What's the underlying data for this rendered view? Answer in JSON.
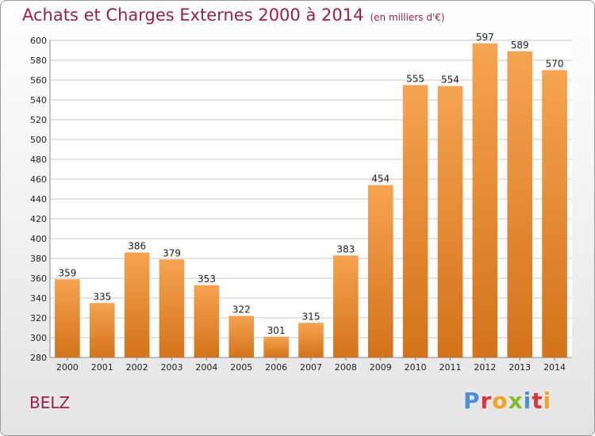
{
  "header": {
    "title": "Achats et Charges Externes 2000 à 2014",
    "subtitle": "(en milliers d'€)"
  },
  "footer": {
    "place": "BELZ",
    "logo_text": "Proxiti",
    "logo_letters": [
      {
        "ch": "P",
        "color": "#4b8fd6"
      },
      {
        "ch": "r",
        "color": "#e2323a"
      },
      {
        "ch": "o",
        "color": "#f3a21e"
      },
      {
        "ch": "x",
        "color": "#7bbd2e"
      },
      {
        "ch": "i",
        "color": "#4b8fd6"
      },
      {
        "ch": "t",
        "color": "#e2323a"
      },
      {
        "ch": "i",
        "color": "#f3a21e"
      }
    ]
  },
  "colors": {
    "bar_top": "#f6a350",
    "bar_bottom": "#d3731a",
    "grid": "#c8c8c8",
    "title": "#9e1f45"
  },
  "chart_data": {
    "type": "bar",
    "title": "Achats et Charges Externes 2000 à 2014",
    "subtitle": "(en milliers d'€)",
    "categories": [
      "2000",
      "2001",
      "2002",
      "2003",
      "2004",
      "2005",
      "2006",
      "2007",
      "2008",
      "2009",
      "2010",
      "2011",
      "2012",
      "2013",
      "2014"
    ],
    "values": [
      359,
      335,
      386,
      379,
      353,
      322,
      301,
      315,
      383,
      454,
      555,
      554,
      597,
      589,
      570
    ],
    "ylim": [
      280,
      600
    ],
    "yticks": [
      280,
      300,
      320,
      340,
      360,
      380,
      400,
      420,
      440,
      460,
      480,
      500,
      520,
      540,
      560,
      580,
      600
    ],
    "grid": true,
    "xlabel": "",
    "ylabel": ""
  }
}
